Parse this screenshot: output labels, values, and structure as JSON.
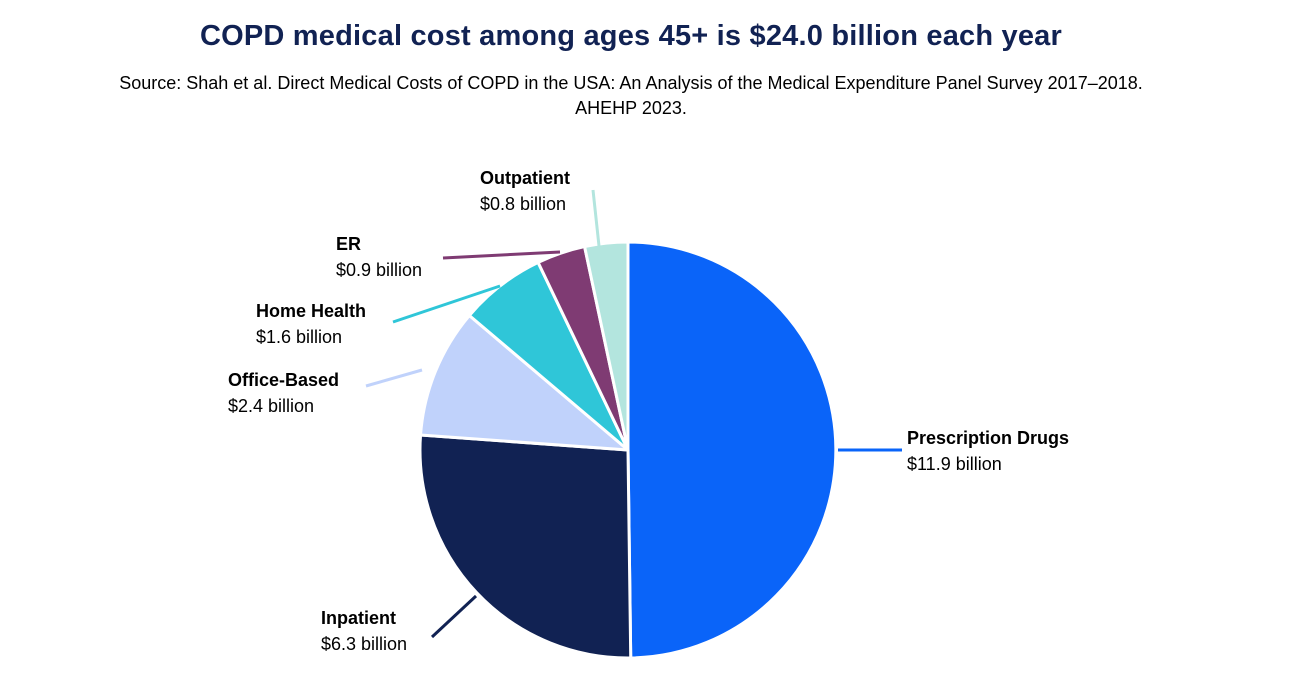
{
  "chart_data": {
    "type": "pie",
    "title": "COPD medical cost among ages 45+ is $24.0 billion each year",
    "subtitle_lines": [
      "Source: Shah et al. Direct Medical Costs of COPD in the USA: An Analysis of the Medical Expenditure Panel Survey 2017–2018.",
      "AHEHP 2023."
    ],
    "slices": [
      {
        "name": "Prescription Drugs",
        "value": 11.9,
        "value_label": "$11.9 billion",
        "color": "#0A64F9"
      },
      {
        "name": "Inpatient",
        "value": 6.3,
        "value_label": "$6.3 billion",
        "color": "#112253"
      },
      {
        "name": "Office-Based",
        "value": 2.4,
        "value_label": "$2.4 billion",
        "color": "#C0D2FB"
      },
      {
        "name": "Home Health",
        "value": 1.6,
        "value_label": "$1.6 billion",
        "color": "#2FC6D8"
      },
      {
        "name": "ER",
        "value": 0.9,
        "value_label": "$0.9 billion",
        "color": "#7F3B73"
      },
      {
        "name": "Outpatient",
        "value": 0.8,
        "value_label": "$0.8 billion",
        "color": "#B3E5DE"
      }
    ],
    "start_angle": "12 o'clock",
    "direction": "clockwise"
  }
}
